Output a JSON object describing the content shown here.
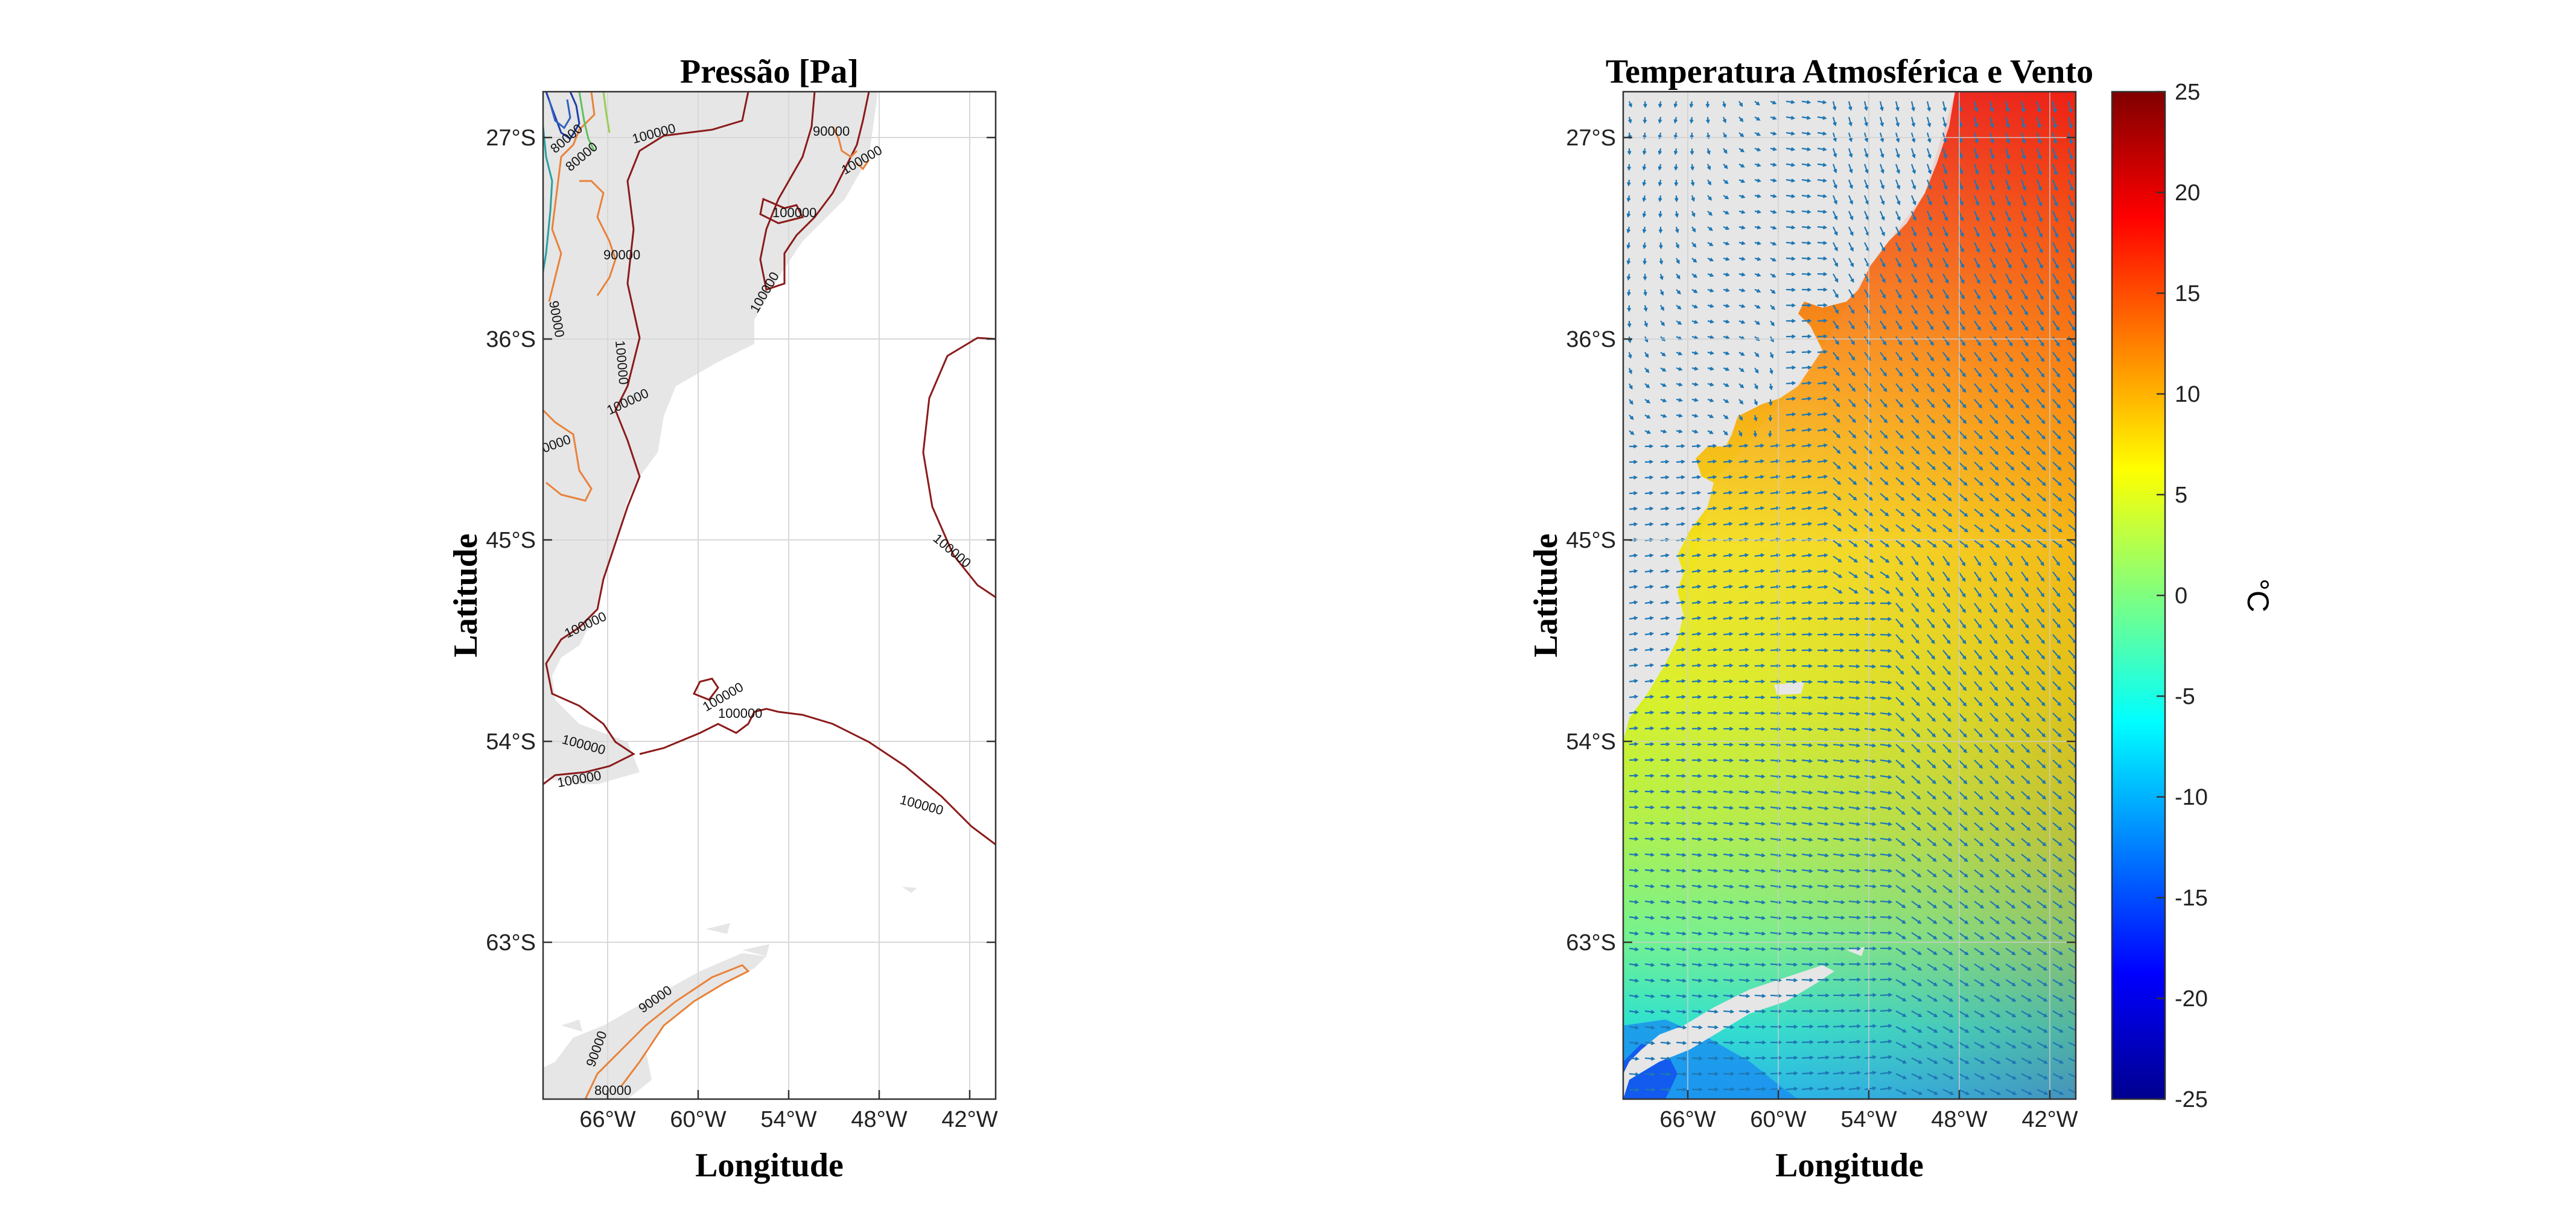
{
  "left_panel": {
    "title": "Pressão [Pa]",
    "xlabel": "Longitude",
    "ylabel": "Latitude",
    "lat_ticks": [
      "27°S",
      "36°S",
      "45°S",
      "54°S",
      "63°S"
    ],
    "lon_ticks": [
      "66°W",
      "60°W",
      "54°W",
      "48°W",
      "42°W"
    ],
    "contour_labels": [
      "90000",
      "100000",
      "80000"
    ]
  },
  "right_panel": {
    "title": "Temperatura Atmosférica e Vento",
    "xlabel": "Longitude",
    "ylabel": "Latitude",
    "lat_ticks": [
      "27°S",
      "36°S",
      "45°S",
      "54°S",
      "63°S"
    ],
    "lon_ticks": [
      "66°W",
      "60°W",
      "54°W",
      "48°W",
      "42°W"
    ]
  },
  "colorbar": {
    "unit": "°C",
    "ticks": [
      "25",
      "20",
      "15",
      "10",
      "5",
      "0",
      "-5",
      "-10",
      "-15",
      "-20",
      "-25"
    ],
    "range": [
      -25,
      25
    ],
    "colormap": "jet"
  },
  "colors": {
    "land": "#e6e6e6",
    "contour_100000": "#8b1a1a",
    "contour_90000": "#e8823a",
    "wind_vectors": "#1f77b4",
    "grid": "#d8d8d8"
  },
  "chart_data": [
    {
      "type": "heatmap",
      "title": "Pressão [Pa]",
      "xlabel": "Longitude",
      "ylabel": "Latitude",
      "xlim": [
        -70,
        -40
      ],
      "ylim": [
        -70,
        -25
      ],
      "contour_levels": [
        80000,
        90000,
        100000
      ],
      "grid": true
    },
    {
      "type": "heatmap",
      "title": "Temperatura Atmosférica e Vento",
      "xlabel": "Longitude",
      "ylabel": "Latitude",
      "xlim": [
        -70,
        -40
      ],
      "ylim": [
        -70,
        -25
      ],
      "colorbar_label": "°C",
      "clim": [
        -25,
        25
      ],
      "grid": true
    }
  ]
}
